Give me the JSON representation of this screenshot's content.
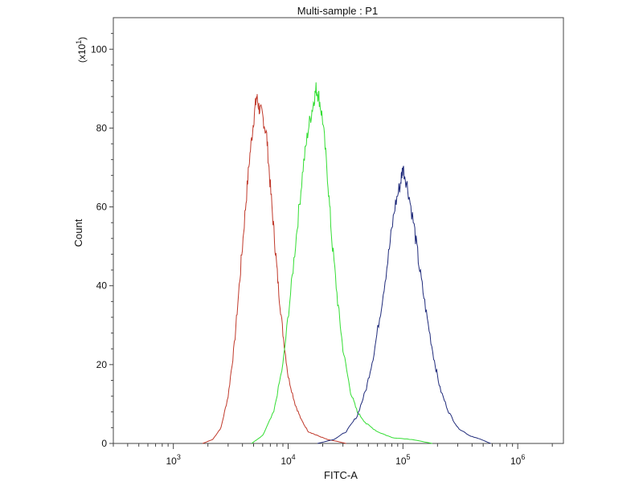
{
  "chart_data": {
    "type": "line",
    "title": "Multi-sample : P1",
    "xlabel": "FITC-A",
    "ylabel": "Count",
    "y_multiplier_label": "(x10",
    "y_multiplier_exp": "1",
    "y_multiplier_close": ")",
    "x_scale": "log",
    "xlim": [
      300,
      2500000
    ],
    "ylim": [
      0,
      108
    ],
    "x_ticks": [
      {
        "base": "10",
        "exp": "3",
        "value": 1000
      },
      {
        "base": "10",
        "exp": "4",
        "value": 10000
      },
      {
        "base": "10",
        "exp": "5",
        "value": 100000
      },
      {
        "base": "10",
        "exp": "6",
        "value": 1000000
      }
    ],
    "y_ticks": [
      "0",
      "20",
      "40",
      "60",
      "80",
      "100"
    ],
    "y_tick_values": [
      0,
      20,
      40,
      60,
      80,
      100
    ],
    "grid": false,
    "series": [
      {
        "color": "#c0392b",
        "x": [
          1800,
          2200,
          2600,
          3000,
          3400,
          3800,
          4200,
          4600,
          5000,
          5300,
          5600,
          6000,
          6500,
          7000,
          7600,
          8200,
          9000,
          10000,
          11500,
          13000,
          15000,
          18000,
          22000,
          27000,
          32000
        ],
        "y": [
          0,
          1,
          4,
          12,
          25,
          42,
          58,
          72,
          82,
          88,
          85,
          83,
          78,
          65,
          52,
          40,
          28,
          17,
          10,
          6,
          3,
          2,
          1,
          0.5,
          0
        ]
      },
      {
        "color": "#33dd33",
        "x": [
          4800,
          6000,
          7500,
          9000,
          10500,
          12000,
          13500,
          15000,
          16500,
          17500,
          18500,
          20000,
          22000,
          24000,
          27000,
          30000,
          35000,
          40000,
          48000,
          60000,
          80000,
          120000,
          180000
        ],
        "y": [
          0,
          2,
          8,
          20,
          38,
          55,
          70,
          80,
          86,
          90,
          88,
          82,
          68,
          52,
          36,
          24,
          13,
          8,
          5,
          3,
          1.5,
          1,
          0
        ]
      },
      {
        "color": "#1f2a7a",
        "x": [
          18000,
          25000,
          32000,
          40000,
          48000,
          56000,
          65000,
          75000,
          85000,
          95000,
          100000,
          110000,
          125000,
          140000,
          160000,
          185000,
          210000,
          250000,
          300000,
          380000,
          480000,
          580000
        ],
        "y": [
          0,
          1,
          3,
          7,
          14,
          23,
          35,
          48,
          60,
          66,
          70,
          65,
          55,
          44,
          33,
          22,
          14,
          8,
          4,
          2,
          1,
          0
        ]
      }
    ]
  }
}
